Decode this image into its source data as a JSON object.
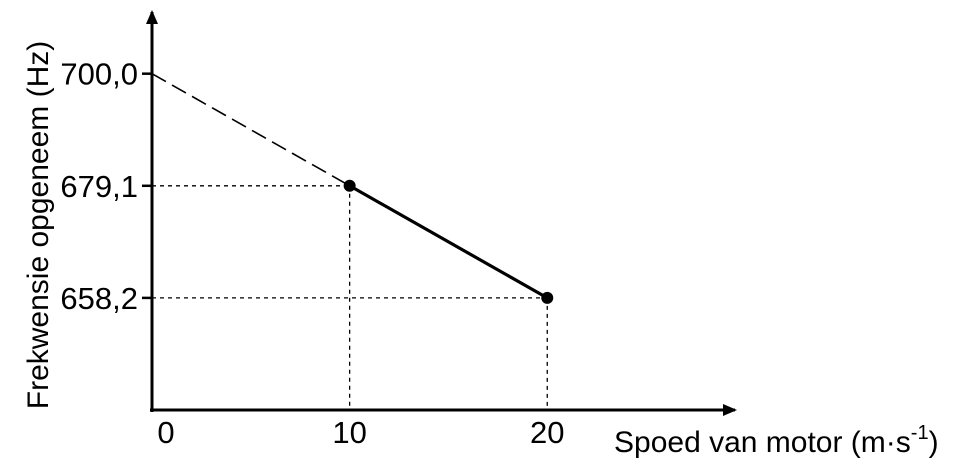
{
  "chart_data": {
    "type": "line",
    "title": "",
    "xlabel": "Spoed van motor (m·s",
    "xlabel_sup": "-1",
    "xlabel_close": ")",
    "ylabel": "Frekwensie opgeneem (Hz)",
    "x_ticks": [
      "0",
      "10",
      "20"
    ],
    "y_ticks": [
      "700,0",
      "679,1",
      "658,2"
    ],
    "x_tick_values": [
      0,
      10,
      20
    ],
    "y_tick_values": [
      700.0,
      679.1,
      658.2
    ],
    "xlim": [
      0,
      29.5
    ],
    "ylim": [
      637.3,
      711.5
    ],
    "grid": false,
    "series": [
      {
        "style": "solid",
        "points": [
          {
            "x": 10,
            "y": 679.1
          },
          {
            "x": 20,
            "y": 658.2
          }
        ]
      },
      {
        "style": "dashed-extrapolation",
        "points": [
          {
            "x": 0,
            "y": 700.0
          },
          {
            "x": 10,
            "y": 679.1
          }
        ]
      }
    ],
    "guide_lines": [
      {
        "x": 10,
        "y": 679.1
      },
      {
        "x": 20,
        "y": 658.2
      }
    ]
  }
}
